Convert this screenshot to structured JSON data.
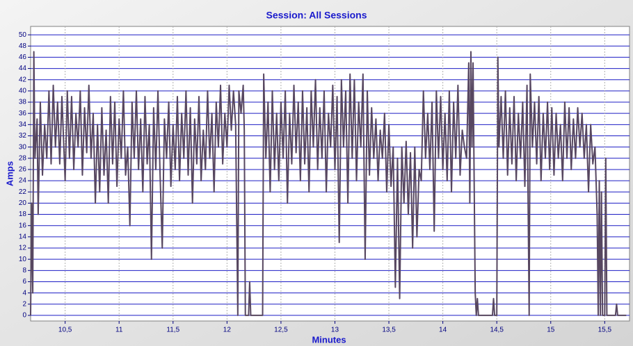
{
  "chart_data": {
    "type": "line",
    "title": "Session: All Sessions",
    "x_label": "Minutes",
    "y_label": "Amps",
    "xlim": [
      10.18,
      15.73
    ],
    "ylim": [
      -1,
      51.5
    ],
    "grid": true,
    "xticks": [
      {
        "value": 10.5,
        "label": "10,5"
      },
      11,
      {
        "value": 11.5,
        "label": "11,5"
      },
      12,
      {
        "value": 12.5,
        "label": "12,5"
      },
      13,
      {
        "value": 13.5,
        "label": "13,5"
      },
      14,
      {
        "value": 14.5,
        "label": "14,5"
      },
      15,
      {
        "value": 15.5,
        "label": "15,5"
      }
    ],
    "yticks": [
      0,
      2,
      4,
      6,
      8,
      10,
      12,
      14,
      16,
      18,
      20,
      22,
      24,
      26,
      28,
      30,
      32,
      34,
      36,
      38,
      40,
      42,
      44,
      46,
      48,
      50
    ],
    "x": [
      10.18,
      10.19,
      10.2,
      10.21,
      10.22,
      10.24,
      10.25,
      10.27,
      10.29,
      10.31,
      10.33,
      10.35,
      10.37,
      10.39,
      10.41,
      10.43,
      10.45,
      10.47,
      10.5,
      10.52,
      10.54,
      10.56,
      10.58,
      10.6,
      10.62,
      10.64,
      10.66,
      10.68,
      10.7,
      10.72,
      10.74,
      10.76,
      10.78,
      10.8,
      10.82,
      10.84,
      10.86,
      10.88,
      10.9,
      10.92,
      10.94,
      10.96,
      10.98,
      11,
      11.02,
      11.04,
      11.06,
      11.08,
      11.1,
      11.12,
      11.14,
      11.16,
      11.18,
      11.2,
      11.22,
      11.24,
      11.26,
      11.28,
      11.3,
      11.32,
      11.34,
      11.36,
      11.38,
      11.4,
      11.42,
      11.44,
      11.46,
      11.48,
      11.5,
      11.52,
      11.54,
      11.56,
      11.58,
      11.6,
      11.62,
      11.64,
      11.66,
      11.68,
      11.7,
      11.72,
      11.74,
      11.76,
      11.78,
      11.8,
      11.82,
      11.84,
      11.86,
      11.88,
      11.9,
      11.92,
      11.94,
      11.96,
      11.98,
      12,
      12.02,
      12.04,
      12.06,
      12.08,
      12.1,
      12.11,
      12.13,
      12.15,
      12.16,
      12.17,
      12.2,
      12.21,
      12.22,
      12.33,
      12.34,
      12.36,
      12.38,
      12.4,
      12.42,
      12.44,
      12.46,
      12.48,
      12.5,
      12.52,
      12.54,
      12.56,
      12.58,
      12.6,
      12.62,
      12.64,
      12.66,
      12.68,
      12.7,
      12.72,
      12.74,
      12.76,
      12.78,
      12.8,
      12.82,
      12.84,
      12.86,
      12.88,
      12.9,
      12.92,
      12.94,
      12.96,
      12.98,
      13,
      13.02,
      13.04,
      13.06,
      13.08,
      13.1,
      13.12,
      13.14,
      13.16,
      13.18,
      13.2,
      13.22,
      13.24,
      13.26,
      13.28,
      13.3,
      13.32,
      13.34,
      13.36,
      13.38,
      13.4,
      13.42,
      13.44,
      13.46,
      13.48,
      13.5,
      13.52,
      13.54,
      13.56,
      13.58,
      13.6,
      13.62,
      13.64,
      13.66,
      13.68,
      13.7,
      13.72,
      13.74,
      13.76,
      13.78,
      13.8,
      13.82,
      13.84,
      13.86,
      13.88,
      13.9,
      13.92,
      13.94,
      13.96,
      13.98,
      14,
      14.02,
      14.04,
      14.06,
      14.08,
      14.1,
      14.12,
      14.14,
      14.16,
      14.18,
      14.2,
      14.22,
      14.24,
      14.25,
      14.26,
      14.27,
      14.28,
      14.3,
      14.31,
      14.32,
      14.33,
      14.46,
      14.47,
      14.48,
      14.5,
      14.51,
      14.52,
      14.54,
      14.56,
      14.58,
      14.6,
      14.62,
      14.64,
      14.66,
      14.68,
      14.7,
      14.72,
      14.74,
      14.76,
      14.78,
      14.8,
      14.81,
      14.83,
      14.85,
      14.87,
      14.89,
      14.91,
      14.93,
      14.95,
      14.97,
      14.99,
      15.01,
      15.03,
      15.05,
      15.07,
      15.09,
      15.11,
      15.13,
      15.15,
      15.17,
      15.19,
      15.21,
      15.23,
      15.25,
      15.27,
      15.29,
      15.31,
      15.33,
      15.35,
      15.37,
      15.39,
      15.41,
      15.43,
      15.44,
      15.45,
      15.46,
      15.47,
      15.48,
      15.5,
      15.51,
      15.52,
      15.6,
      15.61,
      15.62,
      15.7
    ],
    "series": [
      {
        "color": "#574760",
        "values": [
          0,
          20,
          4,
          47,
          28,
          35,
          18,
          38,
          25,
          34,
          28,
          40,
          27,
          41,
          30,
          38,
          27,
          39,
          24,
          40,
          28,
          39,
          26,
          36,
          30,
          40,
          25,
          37,
          29,
          41,
          28,
          36,
          20,
          34,
          22,
          37,
          25,
          33,
          20,
          39,
          27,
          38,
          23,
          35,
          28,
          40,
          25,
          30,
          16,
          38,
          28,
          40,
          26,
          35,
          22,
          39,
          27,
          34,
          10,
          37,
          26,
          40,
          25,
          12,
          35,
          28,
          38,
          23,
          34,
          26,
          39,
          24,
          36,
          28,
          40,
          25,
          37,
          20,
          35,
          27,
          39,
          24,
          33,
          26,
          40,
          28,
          36,
          22,
          38,
          30,
          41,
          27,
          36,
          30,
          41,
          33,
          40,
          34,
          0,
          40,
          36,
          41,
          33,
          0,
          0,
          6,
          0,
          0,
          43,
          28,
          38,
          22,
          40,
          26,
          36,
          24,
          38,
          28,
          40,
          20,
          36,
          27,
          41,
          29,
          38,
          24,
          40,
          27,
          37,
          22,
          40,
          30,
          42,
          26,
          37,
          28,
          40,
          22,
          36,
          30,
          41,
          26,
          39,
          13,
          42,
          30,
          40,
          20,
          43,
          28,
          42,
          24,
          38,
          30,
          43,
          10,
          40,
          25,
          37,
          28,
          35,
          24,
          33,
          28,
          36,
          22,
          34,
          23,
          30,
          5,
          28,
          3,
          30,
          20,
          31,
          18,
          29,
          12,
          30,
          14,
          26,
          24,
          40,
          28,
          36,
          26,
          38,
          15,
          40,
          28,
          39,
          26,
          36,
          24,
          40,
          22,
          38,
          28,
          41,
          25,
          33,
          30,
          28,
          45,
          20,
          47,
          30,
          45,
          4,
          0,
          3,
          0,
          0,
          3,
          0,
          0,
          46,
          30,
          39,
          28,
          40,
          25,
          37,
          27,
          39,
          24,
          36,
          28,
          38,
          23,
          41,
          0,
          43,
          30,
          38,
          27,
          39,
          24,
          36,
          28,
          38,
          26,
          37,
          25,
          36,
          28,
          34,
          24,
          38,
          28,
          37,
          26,
          35,
          28,
          37,
          30,
          36,
          28,
          34,
          22,
          34,
          27,
          30,
          18,
          0,
          24,
          0,
          22,
          0,
          0,
          28,
          0,
          0,
          2,
          0,
          0
        ]
      }
    ]
  }
}
